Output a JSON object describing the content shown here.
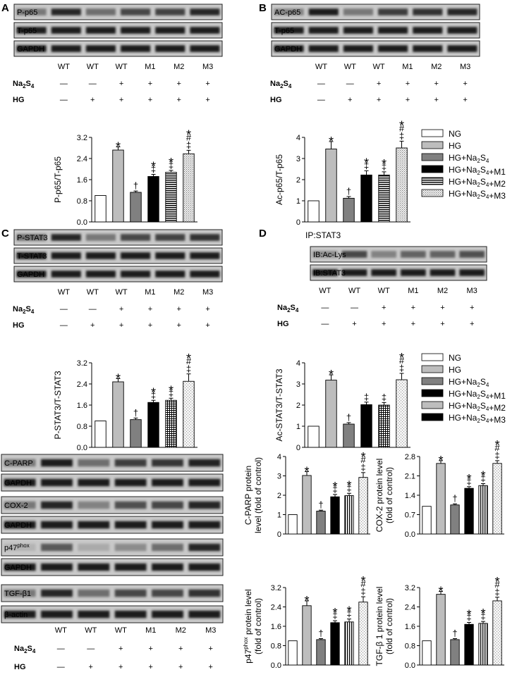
{
  "panels": [
    {
      "letter": "A",
      "blots": [
        {
          "label": "P-p65",
          "pattern": [
            0.45,
            0.85,
            0.5,
            0.7,
            0.72,
            0.85
          ]
        },
        {
          "label": "T-p65",
          "pattern": [
            0.9,
            0.9,
            0.9,
            0.9,
            0.9,
            0.9
          ]
        },
        {
          "label": "GAPDH",
          "pattern": [
            0.9,
            0.9,
            0.9,
            0.9,
            0.9,
            0.9
          ]
        }
      ],
      "lanes": [
        "WT",
        "WT",
        "WT",
        "M1",
        "M2",
        "M3"
      ],
      "na2s4_row": [
        "—",
        "—",
        "+",
        "+",
        "+",
        "+"
      ],
      "hg_row": [
        "—",
        "+",
        "+",
        "+",
        "+",
        "+"
      ],
      "chart_data": {
        "type": "bar",
        "ylabel": "P-p65/T-p65",
        "ylim": [
          0,
          3.2
        ],
        "yticks": [
          "0.0",
          "0.8",
          "1.6",
          "2.4",
          "3.2"
        ],
        "categories": [
          "NG",
          "HG",
          "HG+Na2S4",
          "HG+Na2S4+M1",
          "HG+Na2S4+M2",
          "HG+Na2S4+M3"
        ],
        "values": [
          1.0,
          2.72,
          1.12,
          1.72,
          1.88,
          2.58
        ],
        "errors": [
          0,
          0.12,
          0.05,
          0.08,
          0.07,
          0.13
        ],
        "marks": [
          [],
          [
            "*"
          ],
          [
            "†"
          ],
          [
            "‡",
            "*"
          ],
          [
            "‡",
            "*"
          ],
          [
            "‡",
            "#",
            "*"
          ]
        ]
      }
    },
    {
      "letter": "B",
      "blots": [
        {
          "label": "AC-p65",
          "pattern": [
            0.4,
            0.9,
            0.45,
            0.75,
            0.8,
            0.85
          ]
        },
        {
          "label": "T-p65",
          "pattern": [
            0.9,
            0.9,
            0.9,
            0.9,
            0.9,
            0.9
          ]
        },
        {
          "label": "GAPDH",
          "pattern": [
            0.9,
            0.9,
            0.9,
            0.9,
            0.9,
            0.9
          ]
        }
      ],
      "lanes": [
        "WT",
        "WT",
        "WT",
        "M1",
        "M2",
        "M3"
      ],
      "na2s4_row": [
        "—",
        "—",
        "+",
        "+",
        "+",
        "+"
      ],
      "hg_row": [
        "—",
        "+",
        "+",
        "+",
        "+",
        "+"
      ],
      "chart_data": {
        "type": "bar",
        "ylabel": "Ac-p65/T-p65",
        "ylim": [
          0,
          4
        ],
        "yticks": [
          "0",
          "1",
          "2",
          "3",
          "4"
        ],
        "categories": [
          "NG",
          "HG",
          "HG+Na2S4",
          "HG+Na2S4+M1",
          "HG+Na2S4+M2",
          "HG+Na2S4+M3"
        ],
        "values": [
          1.0,
          3.45,
          1.12,
          2.22,
          2.22,
          3.5
        ],
        "errors": [
          0,
          0.35,
          0.08,
          0.2,
          0.15,
          0.32
        ],
        "marks": [
          [],
          [
            "*"
          ],
          [
            "†"
          ],
          [
            "‡",
            "*"
          ],
          [
            "‡",
            "*"
          ],
          [
            "‡",
            "#",
            "*"
          ]
        ]
      }
    },
    {
      "letter": "C",
      "blots": [
        {
          "label": "P-STAT3",
          "pattern": [
            0.5,
            0.85,
            0.45,
            0.7,
            0.72,
            0.8
          ]
        },
        {
          "label": "T-STAT3",
          "pattern": [
            0.9,
            0.9,
            0.9,
            0.9,
            0.9,
            0.9
          ]
        },
        {
          "label": "GAPDH",
          "pattern": [
            0.9,
            0.9,
            0.9,
            0.9,
            0.9,
            0.9
          ]
        }
      ],
      "lanes": [
        "WT",
        "WT",
        "WT",
        "M1",
        "M2",
        "M3"
      ],
      "na2s4_row": [
        "—",
        "—",
        "+",
        "+",
        "+",
        "+"
      ],
      "hg_row": [
        "—",
        "+",
        "+",
        "+",
        "+",
        "+"
      ],
      "chart_data": {
        "type": "bar",
        "ylabel": "P-STAT3/T-STAT3",
        "ylim": [
          0,
          3.2
        ],
        "yticks": [
          "0.0",
          "0.8",
          "1.6",
          "2.4",
          "3.2"
        ],
        "categories": [
          "NG",
          "HG",
          "HG+Na2S4",
          "HG+Na2S4+M1",
          "HG+Na2S4+M2",
          "HG+Na2S4+M3"
        ],
        "values": [
          1.0,
          2.48,
          1.05,
          1.7,
          1.78,
          2.5
        ],
        "errors": [
          0,
          0.12,
          0.06,
          0.08,
          0.08,
          0.28
        ],
        "marks": [
          [],
          [
            "*"
          ],
          [
            "†"
          ],
          [
            "‡",
            "*"
          ],
          [
            "‡",
            "*"
          ],
          [
            "‡",
            "#",
            "*"
          ]
        ]
      }
    },
    {
      "letter": "D",
      "ip_label": "IP:STAT3",
      "blots": [
        {
          "label": "IB:Ac-Lys",
          "pattern": [
            0.35,
            0.7,
            0.4,
            0.55,
            0.55,
            0.65
          ]
        },
        {
          "label": "IB:STAT3",
          "pattern": [
            0.9,
            0.9,
            0.9,
            0.9,
            0.9,
            0.9
          ]
        }
      ],
      "lanes": [
        "WT",
        "WT",
        "WT",
        "M1",
        "M2",
        "M3"
      ],
      "na2s4_row": [
        "—",
        "—",
        "+",
        "+",
        "+",
        "+"
      ],
      "hg_row": [
        "—",
        "+",
        "+",
        "+",
        "+",
        "+"
      ],
      "chart_data": {
        "type": "bar",
        "ylabel": "Ac-STAT3/T-STAT3",
        "ylim": [
          0,
          4
        ],
        "yticks": [
          "0",
          "1",
          "2",
          "3",
          "4"
        ],
        "categories": [
          "NG",
          "HG",
          "HG+Na2S4",
          "HG+Na2S4+M1",
          "HG+Na2S4+M2",
          "HG+Na2S4+M3"
        ],
        "values": [
          1.0,
          3.18,
          1.1,
          2.02,
          2.0,
          3.2
        ],
        "errors": [
          0,
          0.25,
          0.07,
          0.12,
          0.12,
          0.3
        ],
        "marks": [
          [],
          [
            "*"
          ],
          [
            "†"
          ],
          [
            "‡"
          ],
          [
            "‡"
          ],
          [
            "‡",
            "#",
            "*"
          ]
        ]
      }
    }
  ],
  "legends": [
    {
      "entries": [
        {
          "label": "NG",
          "pattern": "white"
        },
        {
          "label": "HG",
          "pattern": "lightgray"
        },
        {
          "label": "HG+Na2S4",
          "pattern": "gray"
        },
        {
          "label": "HG+Na2S4+M1",
          "pattern": "black"
        },
        {
          "label": "HG+Na2S4+M2",
          "pattern": "hstripe"
        },
        {
          "label": "HG+Na2S4+M3",
          "pattern": "dots"
        }
      ]
    },
    {
      "entries": [
        {
          "label": "NG",
          "pattern": "white"
        },
        {
          "label": "HG",
          "pattern": "lightgray"
        },
        {
          "label": "HG+Na2S4",
          "pattern": "gray"
        },
        {
          "label": "HG+Na2S4+M1",
          "pattern": "black"
        },
        {
          "label": "HG+Na2S4+M2",
          "pattern": "lightgray"
        },
        {
          "label": "HG+Na2S4+M3",
          "pattern": "black"
        }
      ]
    }
  ],
  "panel_e": {
    "letter": "E",
    "blots": [
      {
        "label": "C-PARP",
        "pattern": [
          0.45,
          0.9,
          0.5,
          0.75,
          0.78,
          0.88
        ]
      },
      {
        "label": "GAPDH",
        "pattern": [
          0.9,
          0.9,
          0.9,
          0.9,
          0.9,
          0.9
        ]
      },
      {
        "label": "COX-2",
        "pattern": [
          0.45,
          0.85,
          0.4,
          0.65,
          0.7,
          0.85
        ]
      },
      {
        "label": "GAPDH",
        "pattern": [
          0.9,
          0.9,
          0.9,
          0.9,
          0.9,
          0.9
        ]
      },
      {
        "label": "p47",
        "sup": "phox",
        "pattern": [
          0.15,
          0.6,
          0.2,
          0.35,
          0.5,
          0.85
        ]
      },
      {
        "label": "GAPDH",
        "pattern": [
          0.9,
          0.9,
          0.9,
          0.9,
          0.9,
          0.9
        ]
      },
      {
        "label": "TGF-β1",
        "pattern": [
          0.45,
          0.85,
          0.5,
          0.7,
          0.7,
          0.8
        ]
      },
      {
        "label": "β-actin",
        "pattern": [
          0.9,
          0.9,
          0.9,
          0.9,
          0.9,
          0.9
        ]
      }
    ],
    "lanes": [
      "WT",
      "WT",
      "WT",
      "M1",
      "M2",
      "M3"
    ],
    "na2s4_row": [
      "—",
      "—",
      "+",
      "+",
      "+",
      "+"
    ],
    "hg_row": [
      "—",
      "+",
      "+",
      "+",
      "+",
      "+"
    ],
    "charts": [
      {
        "type": "bar",
        "ylabel_line1": "C-PARP protein",
        "ylabel_line2": "level (fold of control)",
        "ylim": [
          0,
          4
        ],
        "yticks": [
          "0",
          "1",
          "2",
          "3",
          "4"
        ],
        "categories": [
          "NG",
          "HG",
          "HG+Na2S4",
          "HG+Na2S4+M1",
          "HG+Na2S4+M2",
          "HG+Na2S4+M3"
        ],
        "values": [
          1.0,
          3.02,
          1.18,
          1.92,
          1.98,
          2.92
        ],
        "errors": [
          0,
          0.2,
          0.05,
          0.12,
          0.12,
          0.25
        ],
        "marks": [
          [],
          [
            "*"
          ],
          [
            "†"
          ],
          [
            "‡",
            "*"
          ],
          [
            "‡",
            "*"
          ],
          [
            "‡",
            "#",
            "*"
          ]
        ]
      },
      {
        "type": "bar",
        "ylabel_line1": "COX-2 protein level",
        "ylabel_line2": "(fold of control)",
        "ylim": [
          0,
          2.8
        ],
        "yticks": [
          "0.0",
          "0.7",
          "1.4",
          "2.1",
          "2.8"
        ],
        "categories": [
          "NG",
          "HG",
          "HG+Na2S4",
          "HG+Na2S4+M1",
          "HG+Na2S4+M2",
          "HG+Na2S4+M3"
        ],
        "values": [
          1.0,
          2.55,
          1.05,
          1.65,
          1.75,
          2.55
        ],
        "errors": [
          0,
          0.1,
          0.04,
          0.06,
          0.07,
          0.1
        ],
        "marks": [
          [],
          [
            "*"
          ],
          [
            "†"
          ],
          [
            "‡",
            "*"
          ],
          [
            "‡",
            "*"
          ],
          [
            "‡",
            "#",
            "*"
          ]
        ]
      },
      {
        "type": "bar",
        "ylabel_line1": "p47",
        "ylabel_sup": "phox",
        "ylabel_line1_rest": " protein level",
        "ylabel_line2": "(fold of control)",
        "ylim": [
          0,
          3.2
        ],
        "yticks": [
          "0.0",
          "0.8",
          "1.6",
          "2.4",
          "3.2"
        ],
        "categories": [
          "NG",
          "HG",
          "HG+Na2S4",
          "HG+Na2S4+M1",
          "HG+Na2S4+M2",
          "HG+Na2S4+M3"
        ],
        "values": [
          1.0,
          2.45,
          1.05,
          1.75,
          1.78,
          2.6
        ],
        "errors": [
          0,
          0.2,
          0.04,
          0.08,
          0.12,
          0.22
        ],
        "marks": [
          [],
          [
            "*"
          ],
          [
            "†"
          ],
          [
            "‡",
            "*"
          ],
          [
            "‡",
            "*"
          ],
          [
            "‡",
            "#",
            "*"
          ]
        ]
      },
      {
        "type": "bar",
        "ylabel_line1": "TGF-β 1 protein level",
        "ylabel_line2": "(fold of control)",
        "ylim": [
          0,
          3.2
        ],
        "yticks": [
          "0.0",
          "0.8",
          "1.6",
          "2.4",
          "3.2"
        ],
        "categories": [
          "NG",
          "HG",
          "HG+Na2S4",
          "HG+Na2S4+M1",
          "HG+Na2S4+M2",
          "HG+Na2S4+M3"
        ],
        "values": [
          1.0,
          2.92,
          1.05,
          1.68,
          1.72,
          2.65
        ],
        "errors": [
          0,
          0.12,
          0.04,
          0.08,
          0.08,
          0.15
        ],
        "marks": [
          [],
          [
            "*"
          ],
          [
            "†"
          ],
          [
            "‡",
            "*"
          ],
          [
            "‡",
            "*"
          ],
          [
            "‡",
            "#",
            "*"
          ]
        ]
      }
    ]
  },
  "row_labels": {
    "na2s4_main": "Na",
    "na2s4_sub": "2",
    "na2s4_rest": "S",
    "na2s4_sub2": "4",
    "hg": "HG"
  }
}
